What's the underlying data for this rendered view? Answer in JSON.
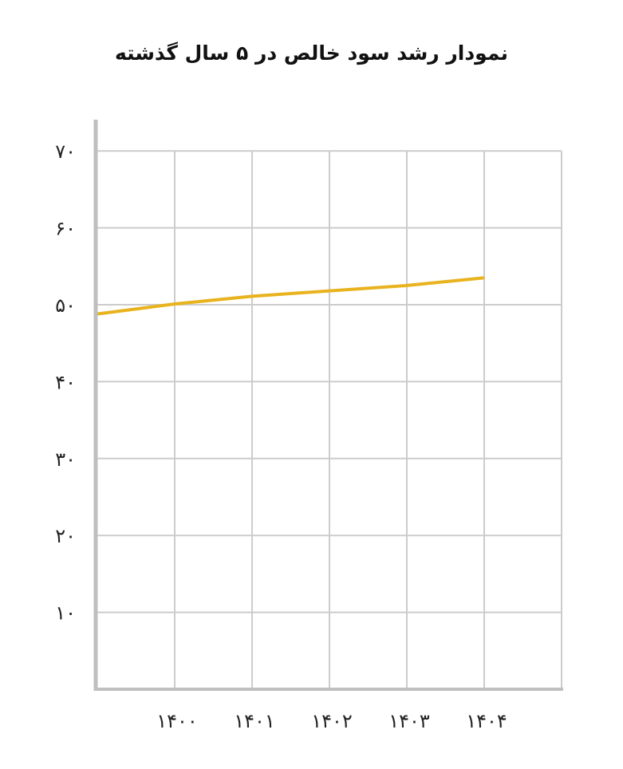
{
  "chart_data": {
    "type": "line",
    "title": "نمودار رشد سود خالص در ۵ سال گذشته",
    "x": [
      "۱۴۰۰",
      "۱۴۰۱",
      "۱۴۰۲",
      "۱۴۰۳",
      "۱۴۰۴"
    ],
    "y_ticks": [
      "۱۰",
      "۲۰",
      "۳۰",
      "۴۰",
      "۵۰",
      "۶۰",
      "۷۰"
    ],
    "y_tick_values": [
      10,
      20,
      30,
      40,
      50,
      60,
      70
    ],
    "ylim": [
      0,
      70
    ],
    "grid": true,
    "series": [
      {
        "x": [
          -1,
          0,
          1,
          2,
          3,
          4
        ],
        "values": [
          48.8,
          50.1,
          51.1,
          51.8,
          52.5,
          53.5
        ],
        "color": "#E8B31E"
      }
    ]
  }
}
